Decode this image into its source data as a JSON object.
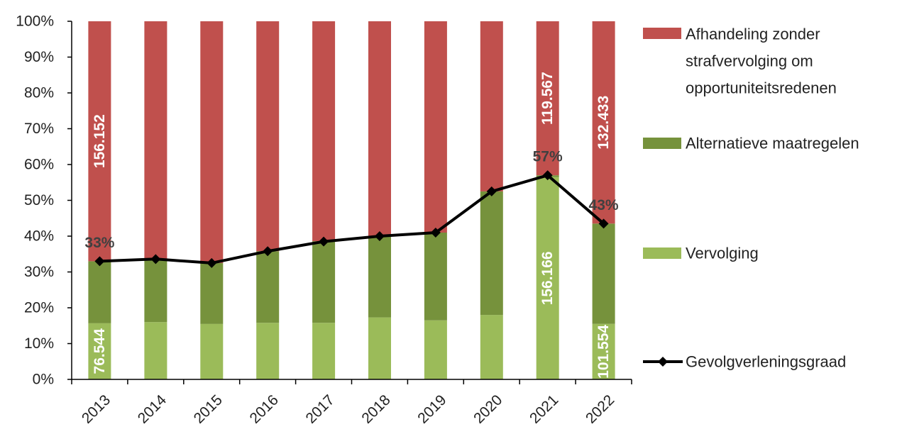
{
  "chart_data": {
    "type": "bar",
    "stacked": true,
    "percent_stacked": true,
    "categories": [
      "2013",
      "2014",
      "2015",
      "2016",
      "2017",
      "2018",
      "2019",
      "2020",
      "2021",
      "2022"
    ],
    "ylim": [
      0,
      100
    ],
    "yticks": [
      "0%",
      "10%",
      "20%",
      "30%",
      "40%",
      "50%",
      "60%",
      "70%",
      "80%",
      "90%",
      "100%"
    ],
    "grid": false,
    "legend_position": "right",
    "series": [
      {
        "name": "Vervolging",
        "color": "#9BBB59",
        "values": [
          15.7,
          16.0,
          15.5,
          15.8,
          15.8,
          17.3,
          16.5,
          18.0,
          56.5,
          15.5
        ],
        "labels": [
          "76.544",
          "",
          "",
          "",
          "",
          "",
          "",
          "",
          "156.166",
          "101.554"
        ]
      },
      {
        "name": "Alternatieve maatregelen",
        "color": "#76923C",
        "values": [
          17.3,
          17.5,
          17.0,
          20.0,
          22.8,
          22.7,
          24.5,
          34.5,
          0.5,
          28.0
        ],
        "labels": [
          "",
          "",
          "",
          "",
          "",
          "",
          "",
          "",
          "",
          ""
        ]
      },
      {
        "name": "Afhandeling zonder strafvervolging om opportuniteitsredenen",
        "legend_lines": [
          "Afhandeling zonder",
          "strafvervolging om",
          "opportuniteitsredenen"
        ],
        "color": "#C0504D",
        "values": [
          67.0,
          66.5,
          67.5,
          64.2,
          61.4,
          60.0,
          59.0,
          47.5,
          43.0,
          56.5
        ],
        "labels": [
          "156.152",
          "",
          "",
          "",
          "",
          "",
          "",
          "",
          "119.567",
          "132.433"
        ]
      }
    ],
    "line_series": {
      "name": "Gevolgverleningsgraad",
      "color": "#000000",
      "values": [
        33.0,
        33.6,
        32.5,
        35.8,
        38.5,
        40.0,
        41.0,
        52.5,
        57.0,
        43.5
      ],
      "labels": [
        "33%",
        "",
        "",
        "",
        "",
        "",
        "",
        "",
        "57%",
        "43%"
      ]
    }
  }
}
